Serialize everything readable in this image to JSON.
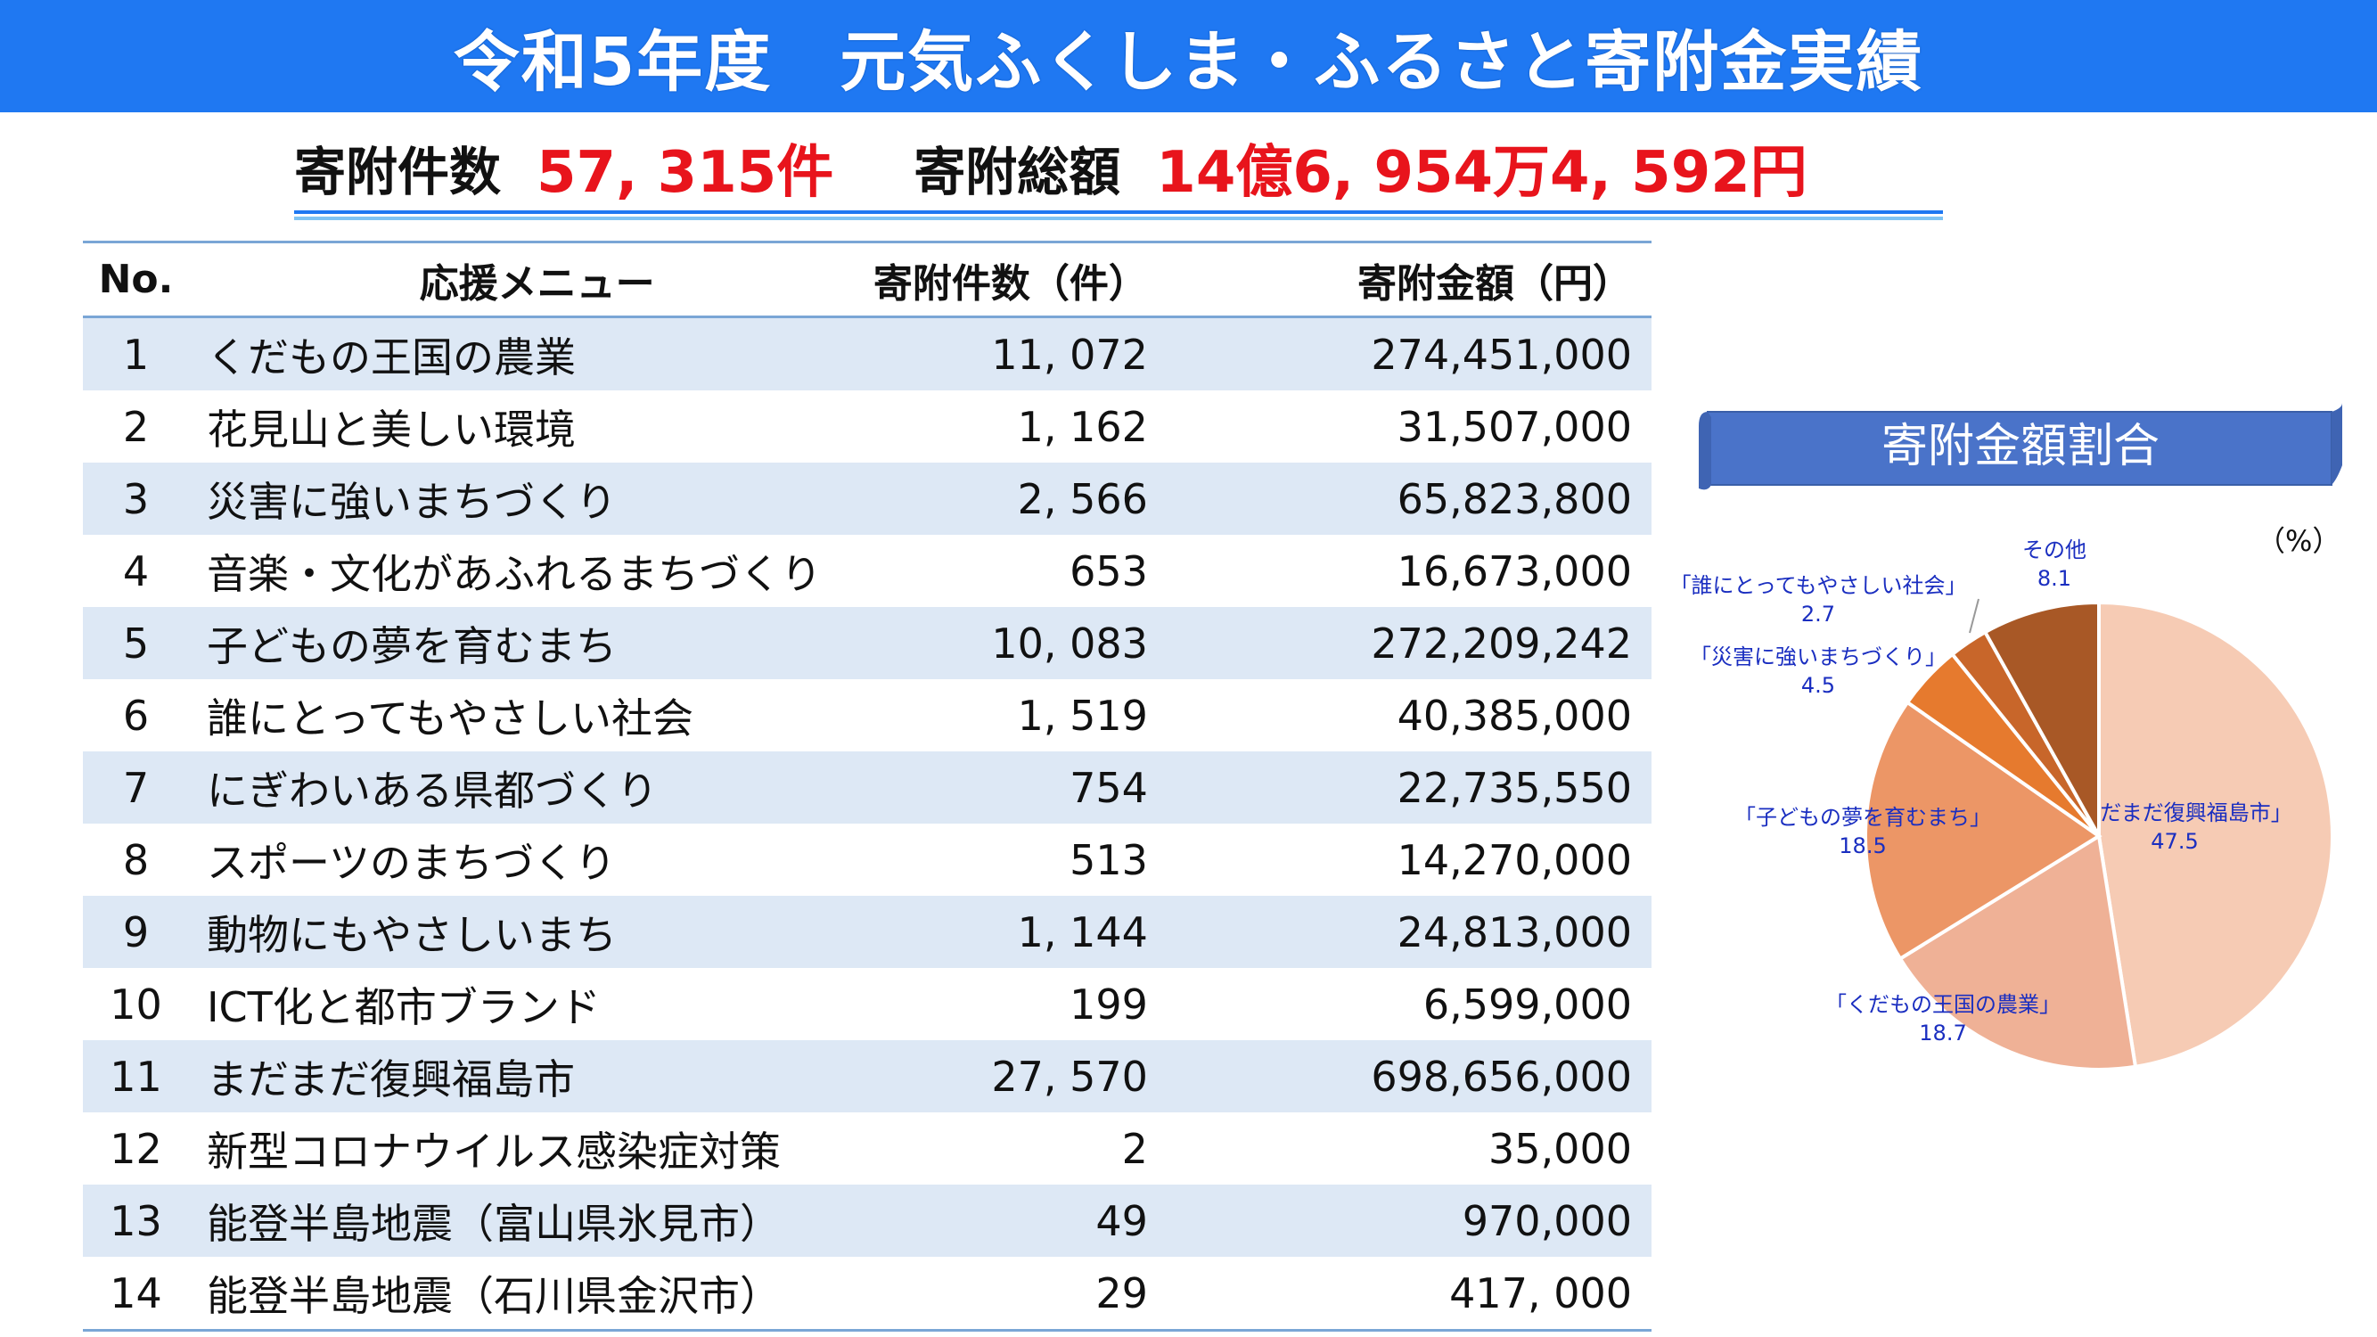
{
  "header": {
    "title": "令和5年度　元気ふくしま・ふるさと寄附金実績"
  },
  "summary": {
    "count_label": "寄附件数",
    "count_value": "57, 315件",
    "total_label": "寄附総額",
    "total_value": "14億6, 954万4, 592円"
  },
  "table": {
    "headers": {
      "no": "No.",
      "menu": "応援メニュー",
      "count": "寄附件数（件）",
      "amount": "寄附金額（円）"
    },
    "rows": [
      {
        "no": "1",
        "menu": "くだもの王国の農業",
        "count": "11, 072",
        "amount": "274,451,000"
      },
      {
        "no": "2",
        "menu": "花見山と美しい環境",
        "count": "1, 162",
        "amount": "31,507,000"
      },
      {
        "no": "3",
        "menu": "災害に強いまちづくり",
        "count": "2, 566",
        "amount": "65,823,800"
      },
      {
        "no": "4",
        "menu": "音楽・文化があふれるまちづくり",
        "count": "653",
        "amount": "16,673,000"
      },
      {
        "no": "5",
        "menu": "子どもの夢を育むまち",
        "count": "10, 083",
        "amount": "272,209,242"
      },
      {
        "no": "6",
        "menu": "誰にとってもやさしい社会",
        "count": "1, 519",
        "amount": "40,385,000"
      },
      {
        "no": "7",
        "menu": "にぎわいある県都づくり",
        "count": "754",
        "amount": "22,735,550"
      },
      {
        "no": "8",
        "menu": "スポーツのまちづくり",
        "count": "513",
        "amount": "14,270,000"
      },
      {
        "no": "9",
        "menu": "動物にもやさしいまち",
        "count": "1, 144",
        "amount": "24,813,000"
      },
      {
        "no": "10",
        "menu": "ICT化と都市ブランド",
        "count": "199",
        "amount": "6,599,000"
      },
      {
        "no": "11",
        "menu": "まだまだ復興福島市",
        "count": "27, 570",
        "amount": "698,656,000"
      },
      {
        "no": "12",
        "menu": "新型コロナウイルス感染症対策",
        "count": "2",
        "amount": "35,000"
      },
      {
        "no": "13",
        "menu": "能登半島地震（富山県氷見市）",
        "count": "49",
        "amount": "970,000"
      },
      {
        "no": "14",
        "menu": "能登半島地震（石川県金沢市）",
        "count": "29",
        "amount": "417, 000"
      }
    ]
  },
  "chart_data": {
    "type": "pie",
    "title": "寄附金額割合",
    "unit": "（%）",
    "slices": [
      {
        "label": "「まだまだ復興福島市」",
        "value": 47.5,
        "color": "#f6cbb4"
      },
      {
        "label": "「くだもの王国の農業」",
        "value": 18.7,
        "color": "#efb196"
      },
      {
        "label": "「子どもの夢を育むまち」",
        "value": 18.5,
        "color": "#ec9666"
      },
      {
        "label": "「災害に強いまちづくり」",
        "value": 4.5,
        "color": "#e67a2e"
      },
      {
        "label": "「誰にとってもやさしい社会」",
        "value": 2.7,
        "color": "#c8662a"
      },
      {
        "label": "その他",
        "value": 8.1,
        "color": "#a85826"
      }
    ]
  },
  "colors": {
    "title_bar": "#1f78f2",
    "accent_red": "#e8141c",
    "banner": "#4a73c9",
    "label_blue": "#1a2ec0"
  }
}
